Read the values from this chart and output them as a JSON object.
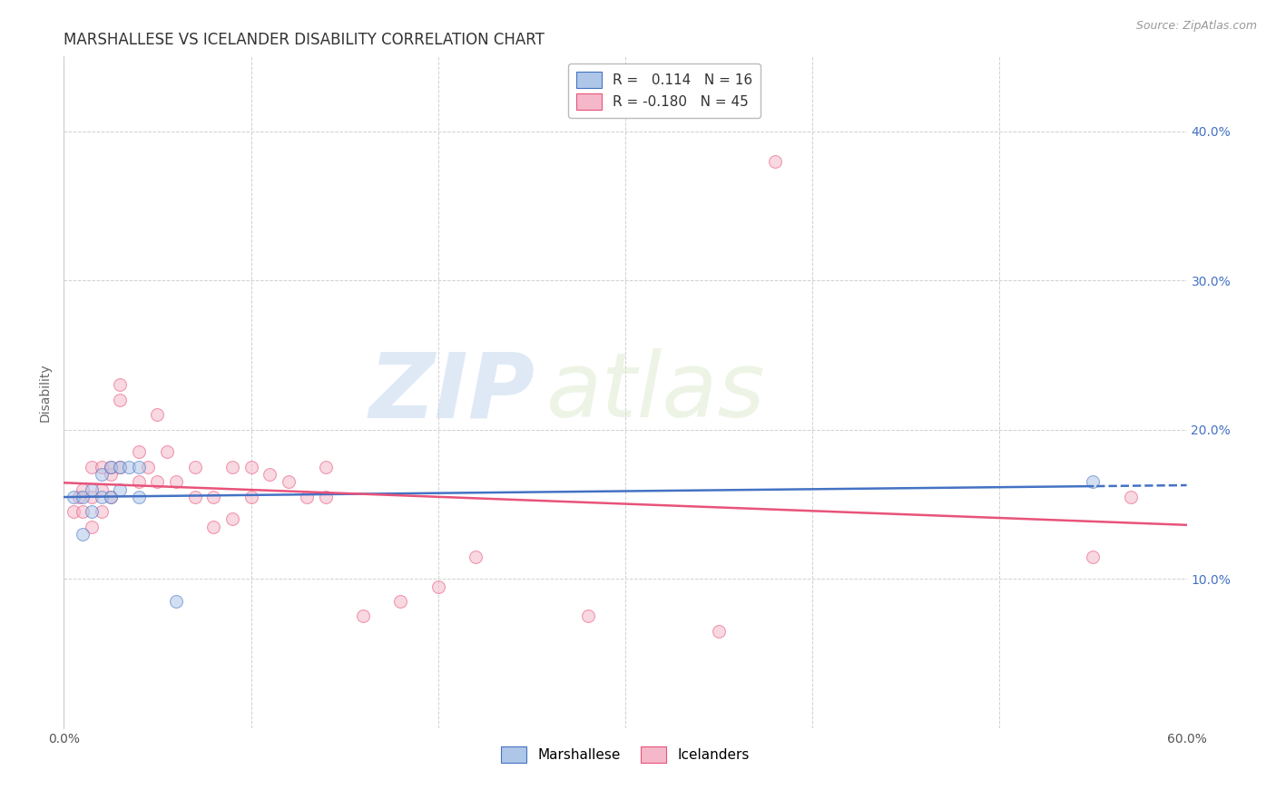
{
  "title": "MARSHALLESE VS ICELANDER DISABILITY CORRELATION CHART",
  "source": "Source: ZipAtlas.com",
  "ylabel": "Disability",
  "xlim": [
    0.0,
    0.6
  ],
  "ylim": [
    0.0,
    0.45
  ],
  "x_ticks": [
    0.0,
    0.1,
    0.2,
    0.3,
    0.4,
    0.5,
    0.6
  ],
  "x_tick_labels": [
    "0.0%",
    "",
    "",
    "",
    "",
    "",
    "60.0%"
  ],
  "y_ticks": [
    0.0,
    0.1,
    0.2,
    0.3,
    0.4
  ],
  "y_tick_labels": [
    "",
    "10.0%",
    "20.0%",
    "30.0%",
    "40.0%"
  ],
  "grid_color": "#d0d0d0",
  "background_color": "#ffffff",
  "watermark_zip": "ZIP",
  "watermark_atlas": "atlas",
  "legend_R_blue": " 0.114",
  "legend_N_blue": "16",
  "legend_R_pink": "-0.180",
  "legend_N_pink": "45",
  "blue_fill": "#aec6e8",
  "pink_fill": "#f4b8ca",
  "blue_edge": "#4472c4",
  "pink_edge": "#e8537a",
  "blue_line_color": "#4472c4",
  "pink_line_color": "#e8537a",
  "tick_label_color": "#4472c4",
  "title_color": "#333333",
  "marshallese_x": [
    0.005,
    0.01,
    0.01,
    0.015,
    0.015,
    0.02,
    0.02,
    0.025,
    0.025,
    0.03,
    0.03,
    0.035,
    0.04,
    0.04,
    0.06,
    0.55
  ],
  "marshallese_y": [
    0.155,
    0.13,
    0.155,
    0.145,
    0.16,
    0.155,
    0.17,
    0.155,
    0.175,
    0.16,
    0.175,
    0.175,
    0.155,
    0.175,
    0.085,
    0.165
  ],
  "icelanders_x": [
    0.005,
    0.008,
    0.01,
    0.01,
    0.015,
    0.015,
    0.015,
    0.02,
    0.02,
    0.02,
    0.025,
    0.025,
    0.025,
    0.03,
    0.03,
    0.03,
    0.04,
    0.04,
    0.045,
    0.05,
    0.05,
    0.055,
    0.06,
    0.07,
    0.07,
    0.08,
    0.08,
    0.09,
    0.09,
    0.1,
    0.1,
    0.11,
    0.12,
    0.13,
    0.14,
    0.14,
    0.16,
    0.18,
    0.2,
    0.22,
    0.28,
    0.35,
    0.38,
    0.55,
    0.57
  ],
  "icelanders_y": [
    0.145,
    0.155,
    0.145,
    0.16,
    0.135,
    0.155,
    0.175,
    0.145,
    0.16,
    0.175,
    0.155,
    0.17,
    0.175,
    0.22,
    0.23,
    0.175,
    0.165,
    0.185,
    0.175,
    0.165,
    0.21,
    0.185,
    0.165,
    0.175,
    0.155,
    0.135,
    0.155,
    0.175,
    0.14,
    0.155,
    0.175,
    0.17,
    0.165,
    0.155,
    0.155,
    0.175,
    0.075,
    0.085,
    0.095,
    0.115,
    0.075,
    0.065,
    0.38,
    0.115,
    0.155
  ],
  "title_fontsize": 12,
  "axis_fontsize": 10,
  "tick_fontsize": 10,
  "legend_fontsize": 11,
  "marker_size": 100,
  "marker_alpha": 0.55,
  "line_width": 1.8
}
